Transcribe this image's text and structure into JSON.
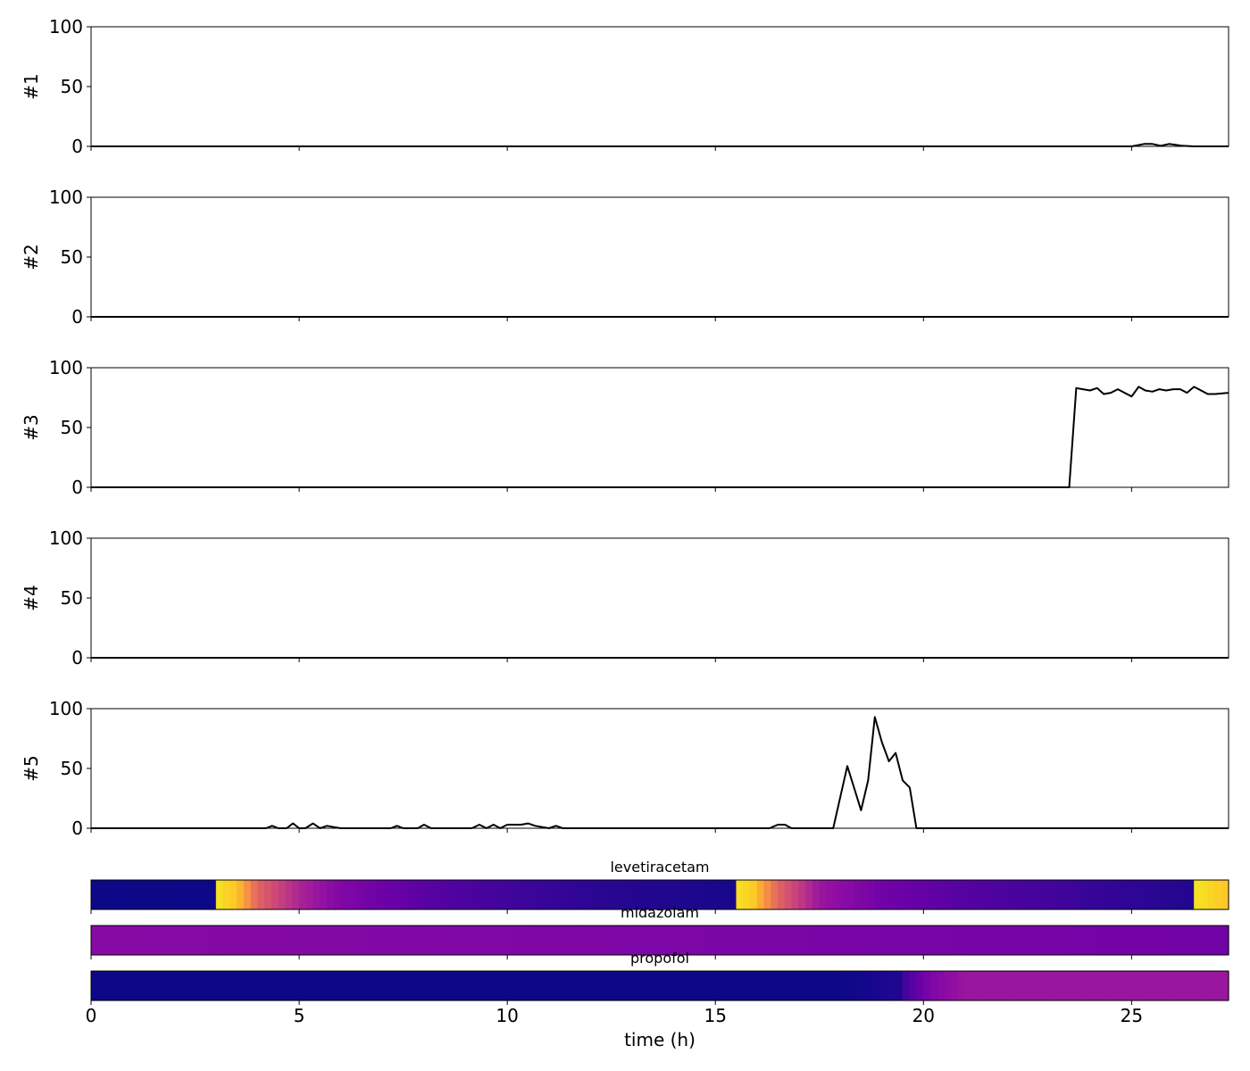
{
  "chart_data": {
    "type": "line",
    "xlabel": "time (h)",
    "xlim": [
      0,
      27.33
    ],
    "xticks": [
      0,
      5,
      10,
      15,
      20,
      25
    ],
    "x_tick_labels": [
      "0",
      "5",
      "10",
      "15",
      "20",
      "25"
    ],
    "panels": [
      {
        "ylabel": "#1",
        "ylim": [
          0,
          100
        ],
        "yticks": [
          0,
          50,
          100
        ],
        "y_tick_labels": [
          "0",
          "50",
          "100"
        ],
        "x": [
          0,
          24.9,
          25.0,
          25.3,
          25.5,
          25.7,
          25.9,
          26.2,
          26.5,
          27.33
        ],
        "y": [
          0,
          0,
          0,
          2,
          2,
          0.5,
          2,
          0.5,
          0,
          0
        ]
      },
      {
        "ylabel": "#2",
        "ylim": [
          0,
          100
        ],
        "yticks": [
          0,
          50,
          100
        ],
        "y_tick_labels": [
          "0",
          "50",
          "100"
        ],
        "x": [
          0,
          27.33
        ],
        "y": [
          0,
          0
        ]
      },
      {
        "ylabel": "#3",
        "ylim": [
          0,
          100
        ],
        "yticks": [
          0,
          50,
          100
        ],
        "y_tick_labels": [
          "0",
          "50",
          "100"
        ],
        "x": [
          0,
          23.5,
          23.67,
          23.83,
          24.0,
          24.17,
          24.33,
          24.5,
          24.67,
          24.83,
          25.0,
          25.17,
          25.33,
          25.5,
          25.67,
          25.83,
          26.0,
          26.17,
          26.33,
          26.5,
          26.67,
          26.83,
          27.0,
          27.33
        ],
        "y": [
          0,
          0,
          83,
          82,
          81,
          83,
          78,
          79,
          82,
          79,
          76,
          84,
          81,
          80,
          82,
          81,
          82,
          82,
          79,
          84,
          81,
          78,
          78,
          79
        ]
      },
      {
        "ylabel": "#4",
        "ylim": [
          0,
          100
        ],
        "yticks": [
          0,
          50,
          100
        ],
        "y_tick_labels": [
          "0",
          "50",
          "100"
        ],
        "x": [
          0,
          27.33
        ],
        "y": [
          0,
          0
        ]
      },
      {
        "ylabel": "#5",
        "ylim": [
          0,
          100
        ],
        "yticks": [
          0,
          50,
          100
        ],
        "y_tick_labels": [
          "0",
          "50",
          "100"
        ],
        "x": [
          0,
          4.2,
          4.35,
          4.5,
          4.7,
          4.85,
          5.0,
          5.15,
          5.33,
          5.5,
          5.67,
          5.83,
          6.0,
          7.2,
          7.35,
          7.5,
          7.85,
          8.0,
          8.17,
          9.15,
          9.33,
          9.5,
          9.67,
          9.83,
          10.0,
          10.17,
          10.33,
          10.5,
          10.67,
          11.0,
          11.17,
          11.33,
          16.3,
          16.5,
          16.67,
          16.83,
          17.83,
          18.17,
          18.5,
          18.67,
          18.83,
          19.0,
          19.17,
          19.33,
          19.5,
          19.67,
          19.83,
          27.33
        ],
        "y": [
          0,
          0,
          2,
          0,
          0,
          4,
          0,
          0,
          4,
          0,
          2,
          1,
          0,
          0,
          2,
          0,
          0,
          3,
          0,
          0,
          3,
          0,
          3,
          0,
          3,
          3,
          3,
          4,
          2,
          0,
          2,
          0,
          0,
          3,
          3,
          0,
          0,
          52,
          15,
          40,
          93,
          72,
          56,
          63,
          40,
          34,
          0,
          0
        ]
      }
    ],
    "heatmaps": [
      {
        "title": "levetiracetam",
        "colormap": "plasma",
        "x": [
          0,
          2.95,
          3.0,
          3.5,
          4.0,
          5.0,
          6.0,
          8.0,
          10.0,
          12.5,
          15.42,
          15.45,
          15.9,
          16.5,
          17.5,
          19.0,
          21.0,
          24.0,
          26.5,
          26.55,
          27.05,
          27.33
        ],
        "values": [
          0.0,
          0.0,
          0.95,
          0.88,
          0.6,
          0.38,
          0.26,
          0.16,
          0.1,
          0.05,
          0.02,
          0.95,
          0.9,
          0.6,
          0.33,
          0.22,
          0.15,
          0.08,
          0.04,
          0.95,
          0.9,
          0.88
        ]
      },
      {
        "title": "midazolam",
        "colormap": "plasma",
        "x": [
          0,
          27.33
        ],
        "values": [
          0.28,
          0.22
        ]
      },
      {
        "title": "propofol",
        "colormap": "plasma",
        "x": [
          0,
          18.0,
          19.45,
          19.6,
          19.9,
          20.3,
          21.0,
          27.33
        ],
        "values": [
          0.0,
          0.0,
          0.04,
          0.12,
          0.2,
          0.27,
          0.33,
          0.33
        ]
      }
    ]
  }
}
